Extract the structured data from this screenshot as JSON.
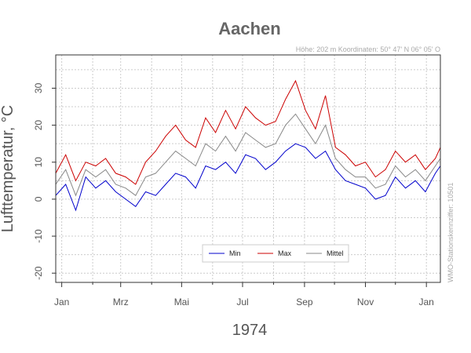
{
  "chart_data": {
    "type": "line",
    "title": "Aachen",
    "subtitle": "Höhe: 202 m   Koordinaten: 50° 47' N  06° 05' O",
    "side_note": "WMO-Stationskennziffer: 10501",
    "xlabel": "1974",
    "ylabel": "Lufttemperatur, °C",
    "ylim": [
      -22.5,
      39
    ],
    "yticks": [
      -20,
      -10,
      0,
      10,
      20,
      30
    ],
    "x_month_labels": [
      "Jan",
      "Mrz",
      "Mai",
      "Jul",
      "Sep",
      "Nov",
      "Jan"
    ],
    "grid": true,
    "legend_position": "bottom-center",
    "series": [
      {
        "name": "Min",
        "color": "#0000cc",
        "x": [
          "1973-12-26",
          "1974-01-05",
          "1974-01-15",
          "1974-01-25",
          "1974-02-04",
          "1974-02-14",
          "1974-02-24",
          "1974-03-06",
          "1974-03-16",
          "1974-03-26",
          "1974-04-05",
          "1974-04-15",
          "1974-04-25",
          "1974-05-05",
          "1974-05-15",
          "1974-05-25",
          "1974-06-04",
          "1974-06-14",
          "1974-06-24",
          "1974-07-04",
          "1974-07-14",
          "1974-07-24",
          "1974-08-03",
          "1974-08-13",
          "1974-08-23",
          "1974-09-02",
          "1974-09-12",
          "1974-09-22",
          "1974-10-02",
          "1974-10-12",
          "1974-10-22",
          "1974-11-01",
          "1974-11-11",
          "1974-11-21",
          "1974-12-01",
          "1974-12-11",
          "1974-12-21",
          "1974-12-31",
          "1975-01-10",
          "1975-01-15"
        ],
        "values": [
          1,
          4,
          -3,
          6,
          3,
          5,
          2,
          0,
          -2,
          2,
          1,
          4,
          7,
          6,
          3,
          9,
          8,
          10,
          7,
          12,
          11,
          8,
          10,
          13,
          15,
          14,
          11,
          13,
          8,
          5,
          4,
          3,
          0,
          1,
          6,
          3,
          5,
          2,
          7,
          9
        ]
      },
      {
        "name": "Max",
        "color": "#cc0000",
        "x": [
          "1973-12-26",
          "1974-01-05",
          "1974-01-15",
          "1974-01-25",
          "1974-02-04",
          "1974-02-14",
          "1974-02-24",
          "1974-03-06",
          "1974-03-16",
          "1974-03-26",
          "1974-04-05",
          "1974-04-15",
          "1974-04-25",
          "1974-05-05",
          "1974-05-15",
          "1974-05-25",
          "1974-06-04",
          "1974-06-14",
          "1974-06-24",
          "1974-07-04",
          "1974-07-14",
          "1974-07-24",
          "1974-08-03",
          "1974-08-13",
          "1974-08-23",
          "1974-09-02",
          "1974-09-12",
          "1974-09-22",
          "1974-10-02",
          "1974-10-12",
          "1974-10-22",
          "1974-11-01",
          "1974-11-11",
          "1974-11-21",
          "1974-12-01",
          "1974-12-11",
          "1974-12-21",
          "1974-12-31",
          "1975-01-10",
          "1975-01-15"
        ],
        "values": [
          7,
          12,
          5,
          10,
          9,
          11,
          7,
          6,
          4,
          10,
          13,
          17,
          20,
          16,
          14,
          22,
          18,
          24,
          19,
          25,
          22,
          20,
          21,
          27,
          32,
          24,
          19,
          28,
          14,
          12,
          9,
          10,
          6,
          8,
          13,
          10,
          12,
          8,
          11,
          14
        ]
      },
      {
        "name": "Mittel",
        "color": "#888888",
        "x": [
          "1973-12-26",
          "1974-01-05",
          "1974-01-15",
          "1974-01-25",
          "1974-02-04",
          "1974-02-14",
          "1974-02-24",
          "1974-03-06",
          "1974-03-16",
          "1974-03-26",
          "1974-04-05",
          "1974-04-15",
          "1974-04-25",
          "1974-05-05",
          "1974-05-15",
          "1974-05-25",
          "1974-06-04",
          "1974-06-14",
          "1974-06-24",
          "1974-07-04",
          "1974-07-14",
          "1974-07-24",
          "1974-08-03",
          "1974-08-13",
          "1974-08-23",
          "1974-09-02",
          "1974-09-12",
          "1974-09-22",
          "1974-10-02",
          "1974-10-12",
          "1974-10-22",
          "1974-11-01",
          "1974-11-11",
          "1974-11-21",
          "1974-12-01",
          "1974-12-11",
          "1974-12-21",
          "1974-12-31",
          "1975-01-10",
          "1975-01-15"
        ],
        "values": [
          4,
          8,
          1,
          8,
          6,
          8,
          4,
          3,
          1,
          6,
          7,
          10,
          13,
          11,
          9,
          15,
          13,
          17,
          13,
          18,
          16,
          14,
          15,
          20,
          23,
          19,
          15,
          20,
          11,
          8,
          6,
          6,
          3,
          4,
          9,
          6,
          8,
          5,
          9,
          11
        ]
      }
    ]
  }
}
